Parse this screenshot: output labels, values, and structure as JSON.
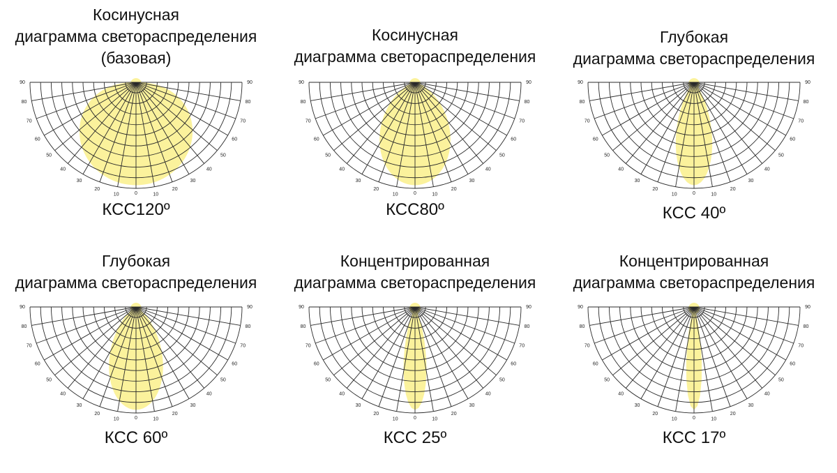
{
  "colors": {
    "beam": "#fbf29c",
    "grid": "#2a2a2a",
    "text": "#111111"
  },
  "angle_ticks": [
    "90",
    "80",
    "70",
    "60",
    "50",
    "40",
    "30",
    "20",
    "10",
    "0"
  ],
  "diagrams": [
    {
      "title_lines": [
        "Косинусная",
        "диаграмма светораспределения",
        "(базовая)"
      ],
      "caption": "КСС120º",
      "beam_angle": 120
    },
    {
      "title_lines": [
        "Косинусная",
        "диаграмма светораспределения"
      ],
      "caption": "КСС80º",
      "beam_angle": 80
    },
    {
      "title_lines": [
        "Глубокая",
        "диаграмма светораспределения"
      ],
      "caption": "КСС 40º",
      "beam_angle": 40
    },
    {
      "title_lines": [
        "Глубокая",
        "диаграмма светораспределения"
      ],
      "caption": "КСС 60º",
      "beam_angle": 60
    },
    {
      "title_lines": [
        "Концентрированная",
        "диаграмма светораспределения"
      ],
      "caption": "КСС 25º",
      "beam_angle": 25
    },
    {
      "title_lines": [
        "Концентрированная",
        "диаграмма светораспределения"
      ],
      "caption": "КСС 17º",
      "beam_angle": 17
    }
  ]
}
